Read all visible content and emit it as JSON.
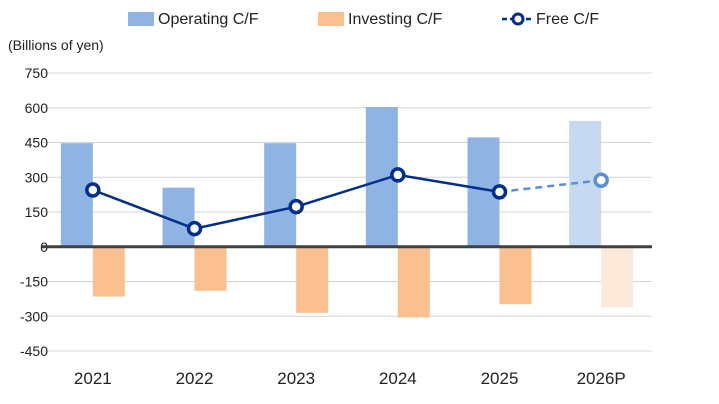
{
  "chart_data": {
    "type": "bar",
    "ylabel": "(Billions of yen)",
    "ylim": [
      -450,
      750
    ],
    "yticks": [
      750,
      600,
      450,
      300,
      150,
      0,
      -150,
      -300,
      -450
    ],
    "grid": true,
    "legend_position": "top",
    "categories": [
      "2021",
      "2022",
      "2023",
      "2024",
      "2025",
      "2026P"
    ],
    "projected_categories": [
      "2026P"
    ],
    "series": [
      {
        "name": "Operating C/F",
        "kind": "bar",
        "color": "#8fb4e3",
        "projected_color": "#c5d9f1",
        "values": [
          447,
          255,
          447,
          603,
          472,
          543
        ]
      },
      {
        "name": "Investing C/F",
        "kind": "bar",
        "color": "#fac090",
        "projected_color": "#fde9d9",
        "values": [
          -215,
          -190,
          -285,
          -305,
          -248,
          -262
        ]
      },
      {
        "name": "Free C/F",
        "kind": "line",
        "color": "#002e8c",
        "projected_color": "#5b8fd6",
        "values": [
          245,
          78,
          173,
          310,
          237,
          287
        ]
      }
    ]
  }
}
